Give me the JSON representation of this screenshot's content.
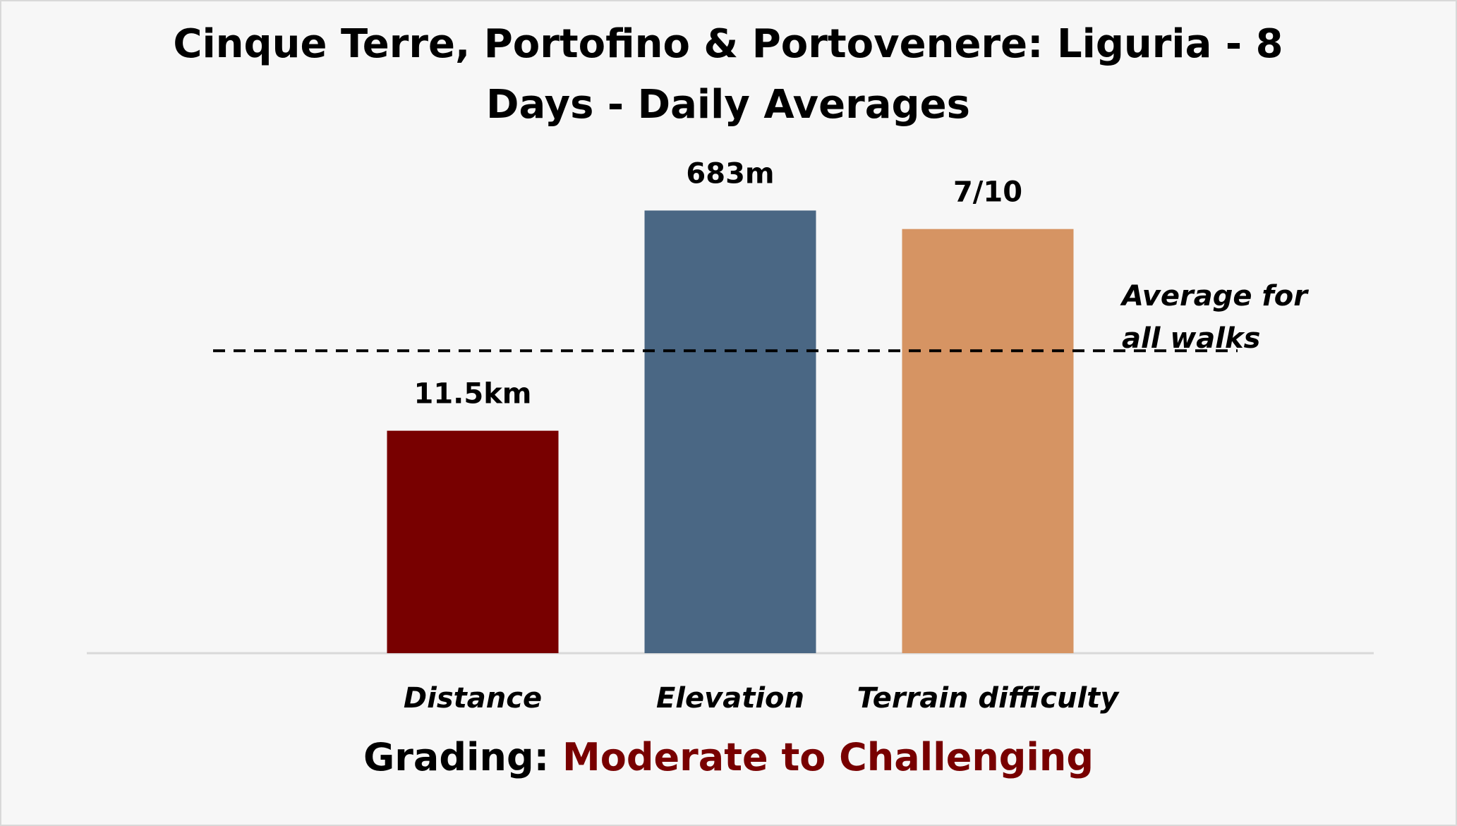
{
  "chart_data": {
    "type": "bar",
    "title": "Cinque Terre, Portofino & Portovenere: Liguria - 8 Days - Daily Averages",
    "categories": [
      "Distance",
      "Elevation",
      "Terrain difficulty"
    ],
    "values": [
      11.5,
      683,
      7
    ],
    "value_labels": [
      "11.5km",
      "683m",
      "7/10"
    ],
    "colors": [
      "#780000",
      "#4a6784",
      "#d69463"
    ],
    "ylims": [
      [
        0,
        26
      ],
      [
        0,
        776
      ],
      [
        0,
        8.3
      ]
    ],
    "reference_line": {
      "label": "Average for all walks",
      "values": [
        15.6,
        467,
        5
      ]
    },
    "grading_label": "Grading:",
    "grading_value": "Moderate to Challenging",
    "grading_color": "#780000"
  }
}
